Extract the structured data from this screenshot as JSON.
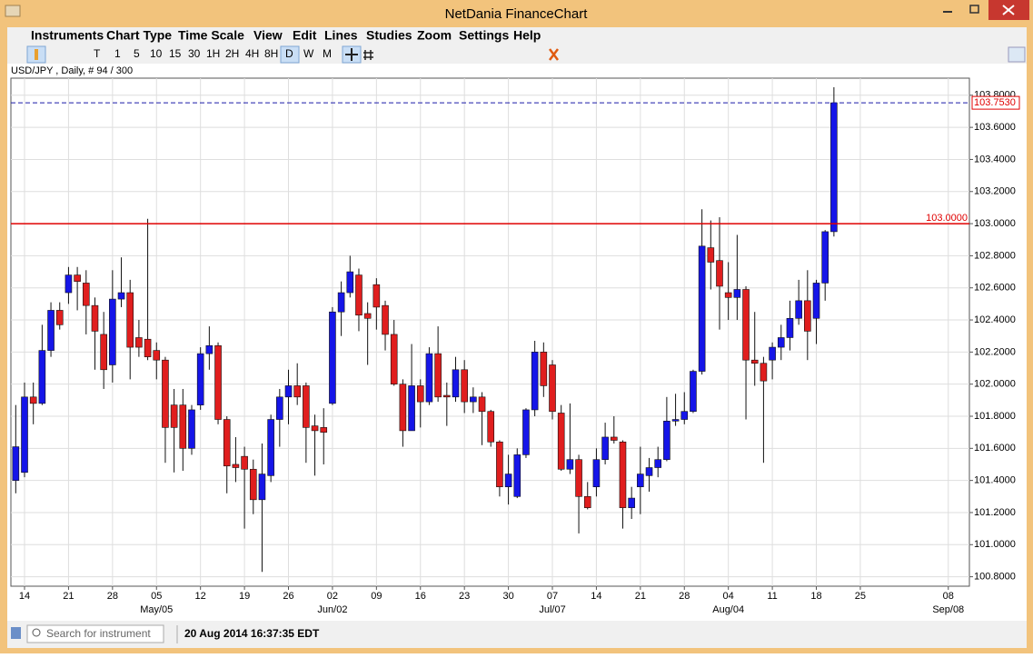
{
  "window": {
    "title": "NetDania FinanceChart"
  },
  "menu": [
    "Instruments",
    "Chart Type",
    "Time Scale",
    "View",
    "Edit",
    "Lines",
    "Studies",
    "Zoom",
    "Settings",
    "Help"
  ],
  "toolbar": [
    "T",
    "1",
    "5",
    "10",
    "15",
    "30",
    "1H",
    "2H",
    "4H",
    "8H",
    "D",
    "W",
    "M"
  ],
  "status": {
    "search_placeholder": "Search for instrument",
    "timestamp": "20 Aug 2014 16:37:35 EDT"
  },
  "chart_data": {
    "type": "candlestick",
    "instrument": "USD/JPY , Daily, # 94 / 300",
    "up_color": "#1515e8",
    "down_color": "#e01e1e",
    "grid": true,
    "open": [
      101.4,
      101.45,
      101.92,
      101.88,
      102.21,
      102.46,
      102.57,
      102.68,
      102.63,
      102.49,
      102.31,
      102.12,
      102.53,
      102.57,
      102.29,
      102.28,
      102.21,
      102.15,
      101.87,
      101.87,
      101.6,
      101.87,
      102.19,
      102.24,
      101.78,
      101.5,
      101.55,
      101.47,
      101.28,
      101.43,
      101.78,
      101.92,
      101.99,
      101.99,
      101.74,
      101.73,
      101.88,
      102.45,
      102.57,
      102.68,
      102.44,
      102.62,
      102.49,
      102.31,
      102.0,
      101.71,
      101.99,
      101.89,
      102.19,
      101.93,
      101.92,
      102.09,
      101.89,
      101.92,
      101.83,
      101.64,
      101.36,
      101.3,
      101.56,
      101.84,
      102.2,
      102.12,
      101.82,
      101.47,
      101.53,
      101.3,
      101.36,
      101.53,
      101.67,
      101.64,
      101.23,
      101.36,
      101.43,
      101.48,
      101.53,
      101.77,
      101.78,
      101.83,
      102.08,
      102.85,
      102.77,
      102.57,
      102.54,
      102.59,
      102.15,
      102.13,
      102.15,
      102.23,
      102.29,
      102.41,
      102.52,
      102.41,
      102.63,
      102.95
    ],
    "high": [
      101.87,
      102.01,
      102.01,
      102.37,
      102.51,
      102.51,
      102.73,
      102.73,
      102.71,
      102.54,
      102.45,
      102.71,
      102.79,
      102.65,
      102.4,
      103.03,
      102.26,
      102.17,
      101.97,
      101.97,
      101.87,
      102.23,
      102.36,
      102.26,
      101.8,
      101.67,
      101.61,
      101.53,
      101.63,
      101.81,
      101.97,
      102.09,
      102.13,
      102.01,
      101.81,
      101.85,
      102.48,
      102.64,
      102.8,
      102.72,
      102.51,
      102.66,
      102.52,
      102.4,
      102.03,
      102.25,
      102.03,
      102.23,
      102.36,
      102.01,
      102.17,
      102.15,
      101.98,
      101.95,
      101.84,
      101.65,
      101.56,
      101.6,
      101.85,
      102.27,
      102.26,
      102.15,
      101.87,
      101.88,
      101.56,
      101.39,
      101.6,
      101.76,
      101.8,
      101.65,
      101.36,
      101.61,
      101.54,
      101.61,
      101.92,
      101.94,
      101.95,
      102.09,
      103.09,
      103.02,
      103.04,
      102.76,
      102.93,
      102.61,
      102.45,
      102.17,
      102.26,
      102.37,
      102.52,
      102.65,
      102.71,
      102.65,
      102.96,
      103.85
    ],
    "low": [
      101.32,
      101.42,
      101.75,
      101.87,
      102.17,
      102.34,
      102.5,
      102.46,
      102.31,
      102.09,
      101.97,
      102.01,
      102.48,
      102.03,
      102.17,
      102.15,
      102.03,
      101.51,
      101.45,
      101.46,
      101.56,
      101.84,
      102.09,
      101.75,
      101.32,
      101.39,
      101.1,
      101.19,
      100.83,
      101.39,
      101.61,
      101.75,
      101.87,
      101.51,
      101.43,
      101.5,
      101.87,
      102.3,
      102.54,
      102.33,
      102.12,
      102.34,
      102.21,
      101.99,
      101.61,
      101.71,
      101.73,
      101.87,
      101.89,
      101.74,
      101.89,
      101.82,
      101.82,
      101.62,
      101.61,
      101.3,
      101.25,
      101.29,
      101.54,
      101.8,
      101.92,
      101.78,
      101.46,
      101.44,
      101.07,
      101.22,
      101.3,
      101.5,
      101.63,
      101.1,
      101.16,
      101.19,
      101.33,
      101.42,
      101.52,
      101.74,
      101.75,
      101.82,
      102.06,
      102.59,
      102.34,
      102.4,
      102.4,
      101.78,
      101.99,
      101.51,
      102.03,
      102.15,
      102.21,
      102.37,
      102.15,
      102.25,
      102.52,
      102.92
    ],
    "close": [
      101.61,
      101.92,
      101.88,
      102.21,
      102.46,
      102.37,
      102.68,
      102.64,
      102.49,
      102.33,
      102.09,
      102.53,
      102.57,
      102.23,
      102.23,
      102.17,
      102.15,
      101.73,
      101.73,
      101.6,
      101.84,
      102.19,
      102.24,
      101.78,
      101.49,
      101.48,
      101.47,
      101.28,
      101.44,
      101.78,
      101.92,
      101.99,
      101.92,
      101.73,
      101.71,
      101.7,
      102.45,
      102.57,
      102.7,
      102.43,
      102.41,
      102.48,
      102.31,
      102.0,
      101.71,
      101.99,
      101.89,
      102.19,
      101.92,
      101.92,
      102.09,
      101.89,
      101.92,
      101.83,
      101.64,
      101.36,
      101.44,
      101.56,
      101.84,
      102.2,
      101.99,
      101.83,
      101.47,
      101.53,
      101.3,
      101.23,
      101.53,
      101.67,
      101.65,
      101.23,
      101.29,
      101.44,
      101.48,
      101.53,
      101.77,
      101.78,
      101.83,
      102.08,
      102.86,
      102.76,
      102.61,
      102.54,
      102.59,
      102.15,
      102.13,
      102.02,
      102.23,
      102.29,
      102.41,
      102.52,
      102.33,
      102.63,
      102.95,
      103.753
    ],
    "ylim": [
      100.7411,
      103.9065
    ],
    "yticks": [
      {
        "value": 100.8,
        "label": "100.8000"
      },
      {
        "value": 101.0,
        "label": "101.0000"
      },
      {
        "value": 101.2,
        "label": "101.2000"
      },
      {
        "value": 101.4,
        "label": "101.4000"
      },
      {
        "value": 101.6,
        "label": "101.6000"
      },
      {
        "value": 101.8,
        "label": "101.8000"
      },
      {
        "value": 102.0,
        "label": "102.0000"
      },
      {
        "value": 102.2,
        "label": "102.2000"
      },
      {
        "value": 102.4,
        "label": "102.4000"
      },
      {
        "value": 102.6,
        "label": "102.6000"
      },
      {
        "value": 102.8,
        "label": "102.8000"
      },
      {
        "value": 103.0,
        "label": "103.0000"
      },
      {
        "value": 103.2,
        "label": "103.2000"
      },
      {
        "value": 103.4,
        "label": "103.4000"
      },
      {
        "value": 103.6,
        "label": "103.6000"
      },
      {
        "value": 103.8,
        "label": "103.8000"
      }
    ],
    "xlim": [
      -0.55,
      108.4
    ],
    "xticks": [
      {
        "value": 1,
        "label": "14"
      },
      {
        "value": 6,
        "label": "21"
      },
      {
        "value": 11,
        "label": "28"
      },
      {
        "value": 16,
        "label": "05"
      },
      {
        "value": 21,
        "label": "12"
      },
      {
        "value": 26,
        "label": "19"
      },
      {
        "value": 31,
        "label": "26"
      },
      {
        "value": 36,
        "label": "02"
      },
      {
        "value": 41,
        "label": "09"
      },
      {
        "value": 46,
        "label": "16"
      },
      {
        "value": 51,
        "label": "23"
      },
      {
        "value": 56,
        "label": "30"
      },
      {
        "value": 61,
        "label": "07"
      },
      {
        "value": 66,
        "label": "14"
      },
      {
        "value": 71,
        "label": "21"
      },
      {
        "value": 76,
        "label": "28"
      },
      {
        "value": 81,
        "label": "04"
      },
      {
        "value": 86,
        "label": "11"
      },
      {
        "value": 91,
        "label": "18"
      },
      {
        "value": 96,
        "label": "25"
      },
      {
        "value": 106,
        "label": "08"
      }
    ],
    "month_ticks": [
      {
        "value": 16,
        "label": "May/05"
      },
      {
        "value": 36,
        "label": "Jun/02"
      },
      {
        "value": 61,
        "label": "Jul/07"
      },
      {
        "value": 81,
        "label": "Aug/04"
      },
      {
        "value": 106,
        "label": "Sep/08"
      }
    ],
    "level_line": {
      "value": 103.0,
      "label": "103.0000",
      "color": "#e00000"
    },
    "last_price": {
      "value": 103.753,
      "label": "103.7530",
      "color": "#1a1aa8"
    }
  }
}
